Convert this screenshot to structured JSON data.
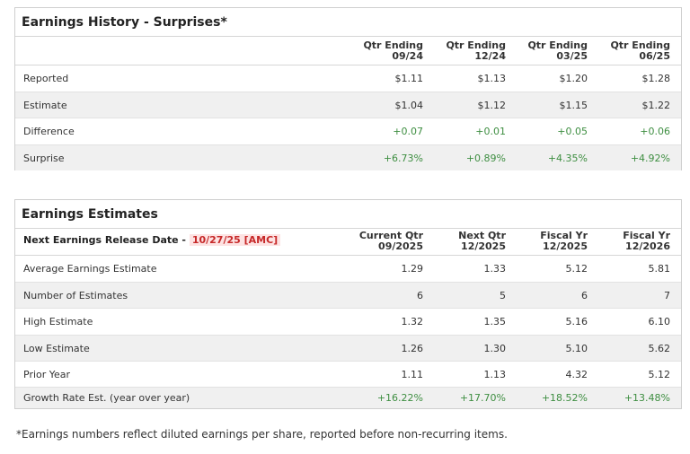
{
  "history": {
    "title": "Earnings History - Surprises*",
    "columns": [
      {
        "line1": "Qtr Ending",
        "line2": "09/24"
      },
      {
        "line1": "Qtr Ending",
        "line2": "12/24"
      },
      {
        "line1": "Qtr Ending",
        "line2": "03/25"
      },
      {
        "line1": "Qtr Ending",
        "line2": "06/25"
      }
    ],
    "rows": [
      {
        "label": "Reported",
        "values": [
          "$1.11",
          "$1.13",
          "$1.20",
          "$1.28"
        ]
      },
      {
        "label": "Estimate",
        "values": [
          "$1.04",
          "$1.12",
          "$1.15",
          "$1.22"
        ]
      },
      {
        "label": "Difference",
        "values": [
          "+0.07",
          "+0.01",
          "+0.05",
          "+0.06"
        ]
      },
      {
        "label": "Surprise",
        "values": [
          "+6.73%",
          "+0.89%",
          "+4.35%",
          "+4.92%"
        ]
      }
    ]
  },
  "estimates": {
    "title": "Earnings Estimates",
    "release_label": "Next Earnings Release Date - ",
    "release_date": "10/27/25 [AMC]",
    "columns": [
      {
        "line1": "Current Qtr",
        "line2": "09/2025"
      },
      {
        "line1": "Next Qtr",
        "line2": "12/2025"
      },
      {
        "line1": "Fiscal Yr",
        "line2": "12/2025"
      },
      {
        "line1": "Fiscal Yr",
        "line2": "12/2026"
      }
    ],
    "rows": [
      {
        "label": "Average Earnings Estimate",
        "values": [
          "1.29",
          "1.33",
          "5.12",
          "5.81"
        ]
      },
      {
        "label": "Number of Estimates",
        "values": [
          "6",
          "5",
          "6",
          "7"
        ]
      },
      {
        "label": "High Estimate",
        "values": [
          "1.32",
          "1.35",
          "5.16",
          "6.10"
        ]
      },
      {
        "label": "Low Estimate",
        "values": [
          "1.26",
          "1.30",
          "5.10",
          "5.62"
        ]
      },
      {
        "label": "Prior Year",
        "values": [
          "1.11",
          "1.13",
          "4.32",
          "5.12"
        ]
      },
      {
        "label": "Growth Rate Est. (year over year)",
        "values": [
          "+16.22%",
          "+17.70%",
          "+18.52%",
          "+13.48%"
        ]
      }
    ]
  },
  "footnote": "*Earnings numbers reflect diluted earnings per share, reported before non-recurring items.",
  "colors": {
    "positive": "#3e8e41",
    "release_date_text": "#c62828",
    "release_date_bg": "#fde3e3",
    "row_shade": "#f0f0f0"
  }
}
